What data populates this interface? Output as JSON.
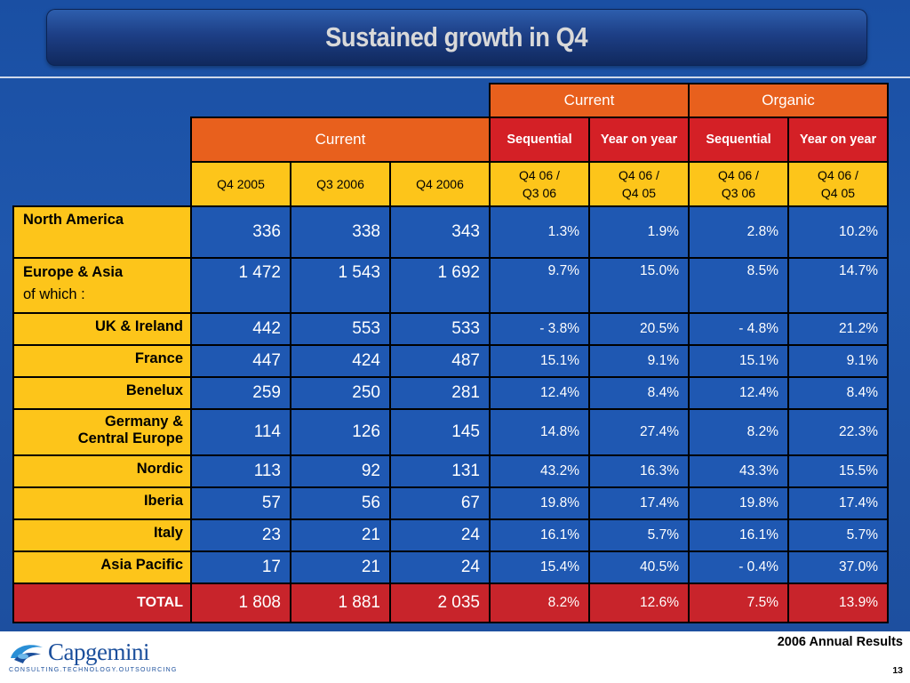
{
  "title": "Sustained growth in Q4",
  "header": {
    "group_current": "Current",
    "group_organic": "Organic",
    "sub_current": "Current",
    "sub_cols": [
      "Sequential",
      "Year on year",
      "Sequential",
      "Year on year"
    ],
    "periods": [
      "Q4 2005",
      "Q3 2006",
      "Q4 2006"
    ],
    "period_compares": [
      {
        "top": "Q4 06 /",
        "bottom": "Q3 06"
      },
      {
        "top": "Q4 06 /",
        "bottom": "Q4 05"
      },
      {
        "top": "Q4 06 /",
        "bottom": "Q3 06"
      },
      {
        "top": "Q4 06 /",
        "bottom": "Q4 05"
      }
    ]
  },
  "rows": [
    {
      "label": "North America",
      "values": [
        "336",
        "338",
        "343"
      ],
      "pcts": [
        "1.3%",
        "1.9%",
        "2.8%",
        "10.2%"
      ]
    },
    {
      "label": "Europe & Asia",
      "sublabel": "of which :",
      "values": [
        "1 472",
        "1 543",
        "1 692"
      ],
      "pcts": [
        "9.7%",
        "15.0%",
        "8.5%",
        "14.7%"
      ]
    },
    {
      "label": "UK & Ireland",
      "values": [
        "442",
        "553",
        "533"
      ],
      "pcts": [
        "- 3.8%",
        "20.5%",
        "- 4.8%",
        "21.2%"
      ]
    },
    {
      "label": "France",
      "values": [
        "447",
        "424",
        "487"
      ],
      "pcts": [
        "15.1%",
        "9.1%",
        "15.1%",
        "9.1%"
      ]
    },
    {
      "label": "Benelux",
      "values": [
        "259",
        "250",
        "281"
      ],
      "pcts": [
        "12.4%",
        "8.4%",
        "12.4%",
        "8.4%"
      ]
    },
    {
      "label": "Germany & Central Europe",
      "label_line1": "Germany &",
      "label_line2": "Central Europe",
      "values": [
        "114",
        "126",
        "145"
      ],
      "pcts": [
        "14.8%",
        "27.4%",
        "8.2%",
        "22.3%"
      ]
    },
    {
      "label": "Nordic",
      "values": [
        "113",
        "92",
        "131"
      ],
      "pcts": [
        "43.2%",
        "16.3%",
        "43.3%",
        "15.5%"
      ]
    },
    {
      "label": "Iberia",
      "values": [
        "57",
        "56",
        "67"
      ],
      "pcts": [
        "19.8%",
        "17.4%",
        "19.8%",
        "17.4%"
      ]
    },
    {
      "label": "Italy",
      "values": [
        "23",
        "21",
        "24"
      ],
      "pcts": [
        "16.1%",
        "5.7%",
        "16.1%",
        "5.7%"
      ]
    },
    {
      "label": "Asia Pacific",
      "values": [
        "17",
        "21",
        "24"
      ],
      "pcts": [
        "15.4%",
        "40.5%",
        "- 0.4%",
        "37.0%"
      ]
    }
  ],
  "total": {
    "label": "TOTAL",
    "values": [
      "1 808",
      "1 881",
      "2 035"
    ],
    "pcts": [
      "8.2%",
      "12.6%",
      "7.5%",
      "13.9%"
    ]
  },
  "footer": {
    "text": "2006 Annual Results",
    "page": "13"
  },
  "logo": {
    "word": "Capgemini",
    "tagline": "CONSULTING.TECHNOLOGY.OUTSOURCING"
  },
  "colors": {
    "background": "#1f58b2",
    "header_orange": "#e8601d",
    "header_red": "#d42026",
    "label_yellow": "#fdc51a",
    "total_red": "#c8242b"
  }
}
